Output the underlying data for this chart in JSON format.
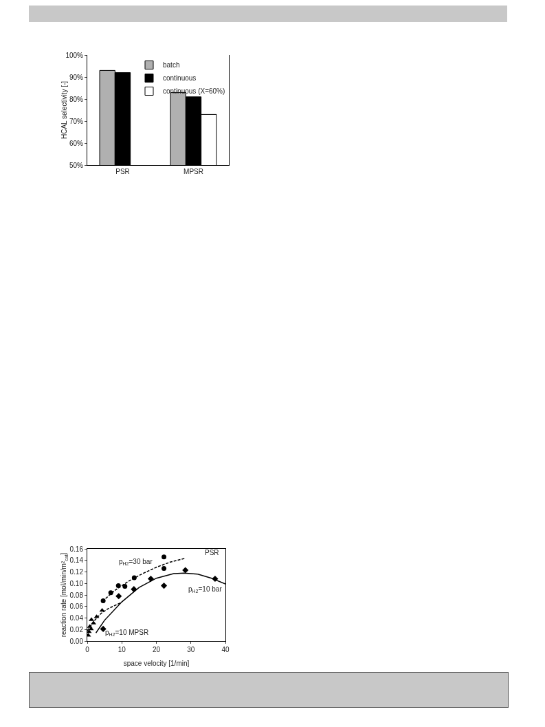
{
  "chart_data": [
    {
      "type": "bar",
      "ylabel": "HCAL selectivity [-]",
      "categories": [
        "PSR",
        "MPSR"
      ],
      "series": [
        {
          "name": "batch",
          "color": "#b0b0b0",
          "values": [
            93,
            83
          ]
        },
        {
          "name": "continuous",
          "color": "#000000",
          "values": [
            92,
            81
          ]
        },
        {
          "name": "continuous (X=60%)",
          "color": "#ffffff",
          "values": [
            null,
            73
          ]
        }
      ],
      "ylim": [
        50,
        100
      ],
      "yticks": [
        {
          "value": 50,
          "label": "50%"
        },
        {
          "value": 60,
          "label": "60%"
        },
        {
          "value": 70,
          "label": "70%"
        },
        {
          "value": 80,
          "label": "80%"
        },
        {
          "value": 90,
          "label": "90%"
        },
        {
          "value": 100,
          "label": "100%"
        }
      ],
      "grid": false,
      "legend": "top right"
    },
    {
      "type": "scatter",
      "xlabel": "space velocity [1/min]",
      "ylabel": "reaction rate [mol/min/m²$_{cat}$]",
      "series": [
        {
          "color": "#000000",
          "marker": "circle",
          "x": [
            4.6,
            6.8,
            9.0,
            10.9,
            13.6,
            22.2,
            22.2
          ],
          "values": [
            0.07,
            0.084,
            0.096,
            0.095,
            0.11,
            0.146,
            0.126
          ]
        },
        {
          "color": "#000000",
          "marker": "diamond",
          "x": [
            4.6,
            9.1,
            13.5,
            18.4,
            22.2,
            28.4,
            37.0
          ],
          "values": [
            0.021,
            0.078,
            0.09,
            0.108,
            0.096,
            0.123,
            0.108
          ]
        },
        {
          "color": "#000000",
          "marker": "triangle",
          "x": [
            0.3,
            0.5,
            0.7,
            1.1,
            1.2,
            1.8,
            2.7,
            4.3
          ],
          "values": [
            0.01,
            0.016,
            0.025,
            0.021,
            0.037,
            0.031,
            0.042,
            0.053
          ]
        },
        {
          "type": "line",
          "color": "#000000",
          "line_style": "dashed",
          "x": [
            4.4,
            8,
            12,
            16,
            20,
            24,
            28.5
          ],
          "values": [
            0.069,
            0.088,
            0.104,
            0.117,
            0.128,
            0.137,
            0.144
          ]
        },
        {
          "type": "line",
          "color": "#000000",
          "line_style": "dashed",
          "x": [
            0,
            2,
            4,
            6,
            9.5
          ],
          "values": [
            0.018,
            0.035,
            0.048,
            0.056,
            0.066
          ]
        },
        {
          "type": "line",
          "color": "#000000",
          "line_style": "solid",
          "x": [
            2.5,
            5,
            10,
            15,
            20,
            25,
            28,
            32,
            36,
            40
          ],
          "values": [
            0.014,
            0.036,
            0.068,
            0.093,
            0.109,
            0.117,
            0.118,
            0.116,
            0.109,
            0.099
          ]
        }
      ],
      "xlim": [
        0,
        40
      ],
      "xticks": [
        0,
        10,
        20,
        30,
        40
      ],
      "ylim": [
        0,
        0.16
      ],
      "yticks": [
        {
          "value": 0,
          "label": "0.00"
        },
        {
          "value": 0.02,
          "label": "0.02"
        },
        {
          "value": 0.04,
          "label": "0.04"
        },
        {
          "value": 0.06,
          "label": "0.06"
        },
        {
          "value": 0.08,
          "label": "0.08"
        },
        {
          "value": 0.1,
          "label": "0.10"
        },
        {
          "value": 0.12,
          "label": "0.12"
        },
        {
          "value": 0.14,
          "label": "0.14"
        },
        {
          "value": 0.16,
          "label": "0.16"
        }
      ],
      "grid": false,
      "legend": false,
      "annotations": [
        "PSR",
        "p$_{H2}$=30 bar",
        "p$_{H2}$=10 bar",
        "p$_{H2}$=10 MPSR"
      ]
    }
  ]
}
